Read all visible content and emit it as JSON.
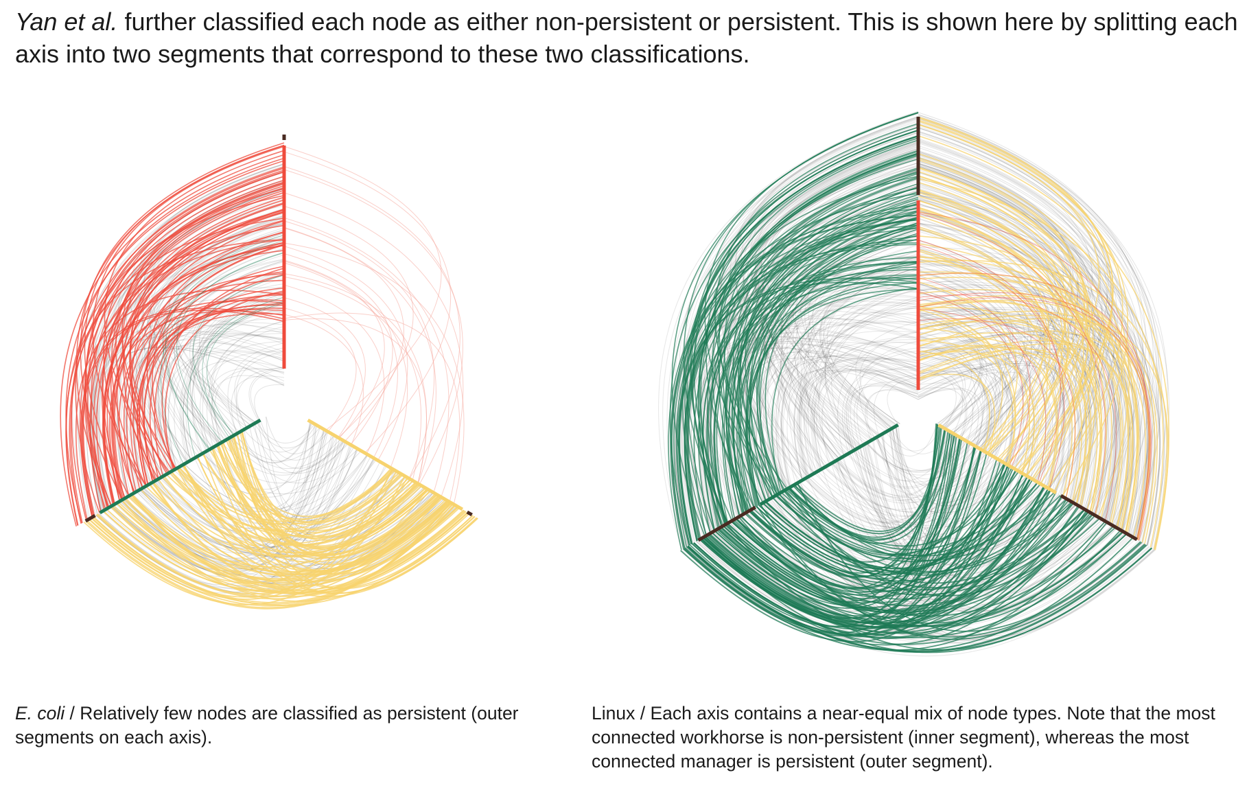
{
  "intro": {
    "italic": "Yan et al.",
    "text": " further classified each node as either non-persistent or persistent. This is shown here by splitting each axis into two segments that correspond to these two classifications."
  },
  "colors": {
    "red": "#ef4b3c",
    "red_light": "#f6a79c",
    "green": "#1e7a55",
    "yellow": "#f7d36e",
    "dark": "#4a2b22",
    "gray": "#222222"
  },
  "plots": [
    {
      "id": "ecoli",
      "caption_italic": "E. coli",
      "caption_text": " / Relatively few nodes are classified as persistent (outer segments on each axis)."
    },
    {
      "id": "linux",
      "caption_italic": "",
      "caption_text": "Linux / Each axis contains a near-equal mix of node types. Note that the most connected workhorse is non-persistent (inner segment), whereas the most connected manager is persistent (outer segment)."
    }
  ]
}
